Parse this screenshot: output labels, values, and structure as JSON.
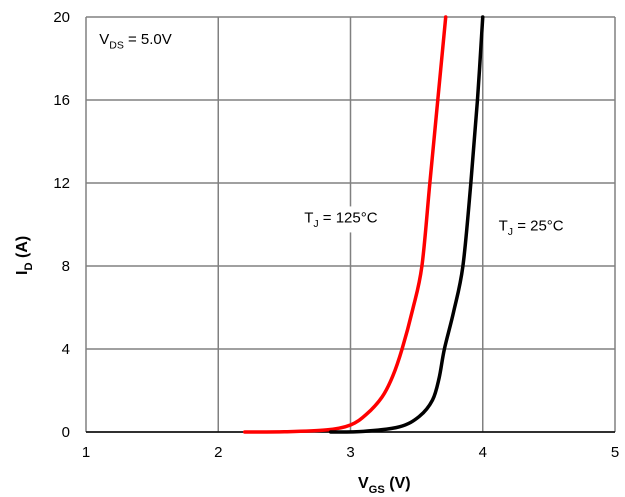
{
  "chart_data": {
    "type": "line",
    "title": "",
    "xlabel": {
      "main": "V",
      "sub": "GS",
      "unit": " (V)"
    },
    "ylabel": {
      "main": "I",
      "sub": "D",
      "unit": " (A)"
    },
    "xlim": [
      1,
      5
    ],
    "ylim": [
      0,
      20
    ],
    "xticks": [
      1,
      2,
      3,
      4,
      5
    ],
    "yticks": [
      0,
      4,
      8,
      12,
      16,
      20
    ],
    "grid": true,
    "annotations": [
      {
        "main": "V",
        "sub": "DS",
        "rest": " = 5.0V",
        "x": 1.1,
        "y": 18.7
      },
      {
        "main": "T",
        "sub": "J",
        "rest": " = 125°C",
        "x": 2.65,
        "y": 10.1
      },
      {
        "main": "T",
        "sub": "J",
        "rest": " = 25°C",
        "x": 4.12,
        "y": 9.7
      }
    ],
    "series": [
      {
        "name": "TJ = 125°C",
        "color": "#ff0000",
        "x": [
          2.2,
          2.5,
          2.82,
          3.0,
          3.12,
          3.24,
          3.32,
          3.39,
          3.47,
          3.54,
          3.6,
          3.66,
          3.72
        ],
        "y": [
          0,
          0.01,
          0.1,
          0.34,
          0.85,
          1.7,
          2.7,
          4,
          5.9,
          8,
          12,
          16,
          20
        ]
      },
      {
        "name": "TJ = 25°C",
        "color": "#000000",
        "x": [
          2.85,
          3.1,
          3.37,
          3.52,
          3.62,
          3.67,
          3.71,
          3.78,
          3.85,
          3.91,
          3.96,
          4.0
        ],
        "y": [
          0,
          0.03,
          0.25,
          0.75,
          1.54,
          2.6,
          4,
          5.8,
          8,
          12,
          16,
          20
        ]
      }
    ]
  }
}
